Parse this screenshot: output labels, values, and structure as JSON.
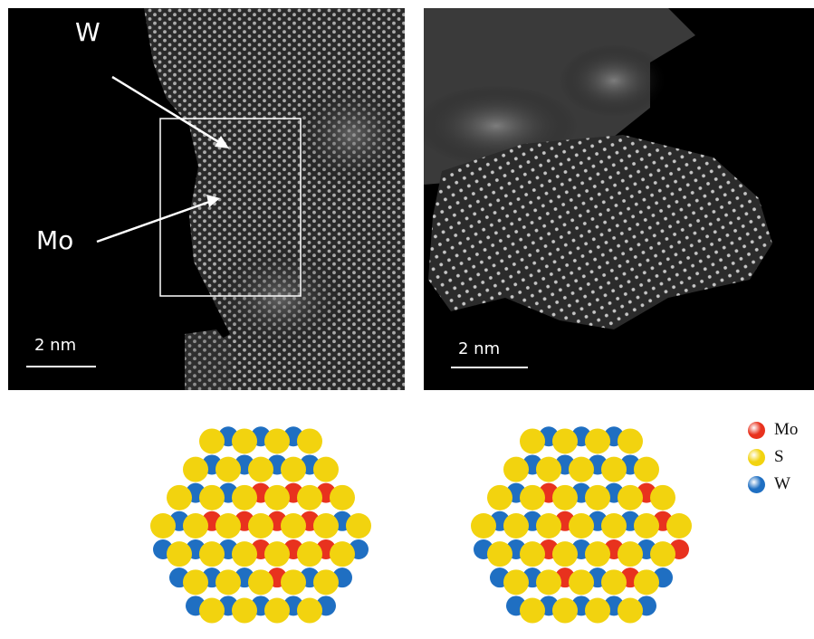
{
  "figure": {
    "panel_a": {
      "annotations": [
        "W",
        "Mo"
      ],
      "scale_bar": "2 nm"
    },
    "panel_b": {
      "scale_bar": "2 nm"
    }
  },
  "legend": [
    {
      "label": "Mo",
      "color": "#e8321e"
    },
    {
      "label": "S",
      "color": "#f2d30f"
    },
    {
      "label": "W",
      "color": "#1f6fc2"
    }
  ],
  "colors": {
    "mo": "#e8321e",
    "s": "#f2d30f",
    "w": "#1f6fc2"
  }
}
